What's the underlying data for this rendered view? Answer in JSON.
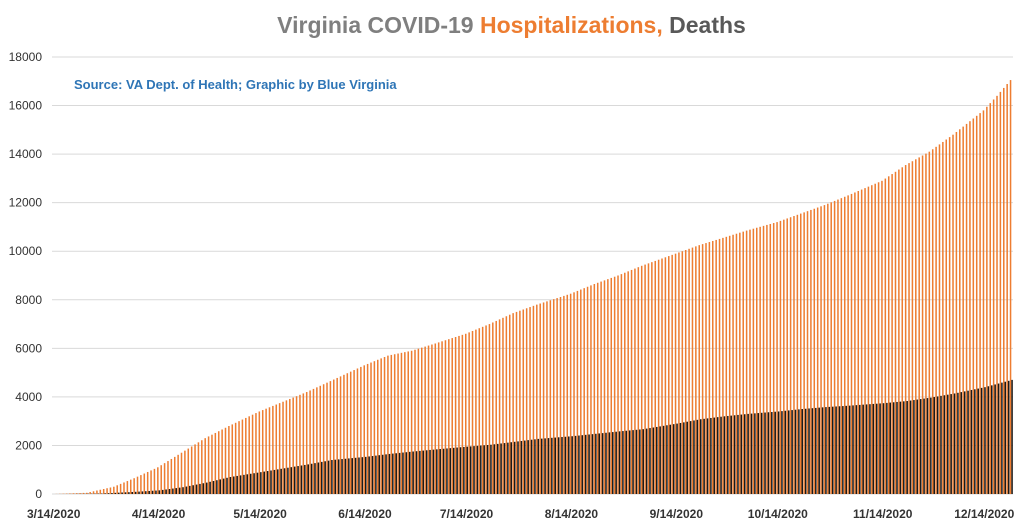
{
  "chart_data": {
    "type": "bar",
    "title_parts": [
      {
        "text": "Virginia COVID-19 ",
        "color": "#7f7f7f"
      },
      {
        "text": "Hospitalizations,",
        "color": "#ed7d31"
      },
      {
        "text": " Deaths",
        "color": "#595959"
      }
    ],
    "source_note": "Source: VA Dept. of Health; Graphic by Blue Virginia",
    "ylim": [
      0,
      18000
    ],
    "y_ticks": [
      0,
      2000,
      4000,
      6000,
      8000,
      10000,
      12000,
      14000,
      16000,
      18000
    ],
    "x_start": "2020-03-14",
    "x_end": "2020-12-22",
    "x_tick_labels": [
      "3/14/2020",
      "4/14/2020",
      "5/14/2020",
      "6/14/2020",
      "7/14/2020",
      "8/14/2020",
      "9/14/2020",
      "10/14/2020",
      "11/14/2020",
      "12/14/2020"
    ],
    "x_tick_dates": [
      "2020-03-14",
      "2020-04-14",
      "2020-05-14",
      "2020-06-14",
      "2020-07-14",
      "2020-08-14",
      "2020-09-14",
      "2020-10-14",
      "2020-11-14",
      "2020-12-14"
    ],
    "series": [
      {
        "name": "Hospitalizations",
        "color": "#ed7d31",
        "points": [
          [
            "2020-03-14",
            0
          ],
          [
            "2020-03-24",
            50
          ],
          [
            "2020-04-01",
            300
          ],
          [
            "2020-04-07",
            650
          ],
          [
            "2020-04-14",
            1100
          ],
          [
            "2020-04-21",
            1700
          ],
          [
            "2020-04-28",
            2300
          ],
          [
            "2020-05-05",
            2800
          ],
          [
            "2020-05-14",
            3400
          ],
          [
            "2020-05-21",
            3800
          ],
          [
            "2020-05-28",
            4200
          ],
          [
            "2020-06-04",
            4650
          ],
          [
            "2020-06-14",
            5300
          ],
          [
            "2020-06-21",
            5700
          ],
          [
            "2020-06-28",
            5900
          ],
          [
            "2020-07-05",
            6200
          ],
          [
            "2020-07-14",
            6600
          ],
          [
            "2020-07-21",
            7000
          ],
          [
            "2020-07-28",
            7450
          ],
          [
            "2020-08-04",
            7800
          ],
          [
            "2020-08-14",
            8250
          ],
          [
            "2020-08-21",
            8650
          ],
          [
            "2020-08-28",
            9000
          ],
          [
            "2020-09-04",
            9400
          ],
          [
            "2020-09-14",
            9900
          ],
          [
            "2020-09-21",
            10250
          ],
          [
            "2020-09-28",
            10550
          ],
          [
            "2020-10-05",
            10850
          ],
          [
            "2020-10-14",
            11200
          ],
          [
            "2020-10-21",
            11550
          ],
          [
            "2020-10-28",
            11900
          ],
          [
            "2020-11-04",
            12300
          ],
          [
            "2020-11-14",
            12900
          ],
          [
            "2020-11-21",
            13550
          ],
          [
            "2020-11-28",
            14100
          ],
          [
            "2020-12-05",
            14800
          ],
          [
            "2020-12-14",
            15800
          ],
          [
            "2020-12-18",
            16400
          ],
          [
            "2020-12-22",
            17050
          ]
        ]
      },
      {
        "name": "Deaths",
        "color": "#1a1a1a",
        "points": [
          [
            "2020-03-14",
            0
          ],
          [
            "2020-03-28",
            20
          ],
          [
            "2020-04-07",
            90
          ],
          [
            "2020-04-14",
            150
          ],
          [
            "2020-04-21",
            280
          ],
          [
            "2020-04-28",
            470
          ],
          [
            "2020-05-05",
            700
          ],
          [
            "2020-05-14",
            900
          ],
          [
            "2020-05-21",
            1060
          ],
          [
            "2020-05-28",
            1220
          ],
          [
            "2020-06-04",
            1400
          ],
          [
            "2020-06-14",
            1530
          ],
          [
            "2020-06-21",
            1650
          ],
          [
            "2020-06-28",
            1750
          ],
          [
            "2020-07-05",
            1840
          ],
          [
            "2020-07-14",
            1950
          ],
          [
            "2020-07-21",
            2030
          ],
          [
            "2020-07-28",
            2150
          ],
          [
            "2020-08-04",
            2270
          ],
          [
            "2020-08-14",
            2380
          ],
          [
            "2020-08-21",
            2480
          ],
          [
            "2020-08-28",
            2580
          ],
          [
            "2020-09-04",
            2670
          ],
          [
            "2020-09-14",
            2900
          ],
          [
            "2020-09-21",
            3080
          ],
          [
            "2020-09-28",
            3200
          ],
          [
            "2020-10-05",
            3300
          ],
          [
            "2020-10-14",
            3400
          ],
          [
            "2020-10-21",
            3500
          ],
          [
            "2020-10-28",
            3580
          ],
          [
            "2020-11-04",
            3640
          ],
          [
            "2020-11-14",
            3740
          ],
          [
            "2020-11-21",
            3830
          ],
          [
            "2020-11-28",
            3970
          ],
          [
            "2020-12-05",
            4140
          ],
          [
            "2020-12-14",
            4400
          ],
          [
            "2020-12-22",
            4700
          ]
        ]
      }
    ],
    "grid": true
  }
}
